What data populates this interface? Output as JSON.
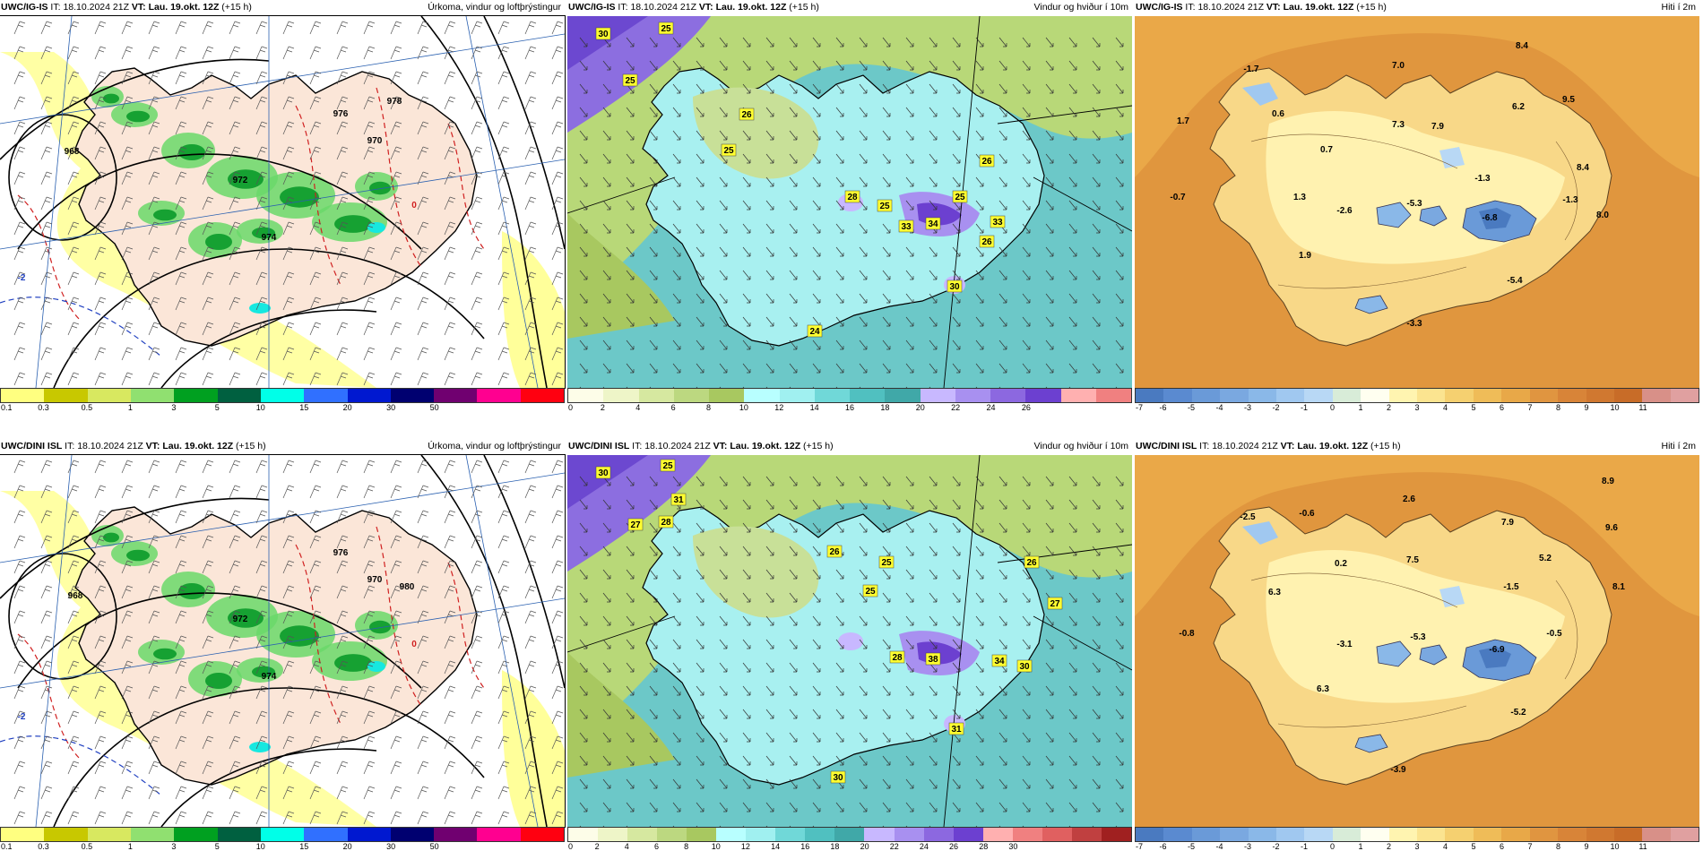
{
  "panels": [
    {
      "header_model": "UWC/IG-IS",
      "header_it_label": "IT:",
      "header_it": "18.10.2024 21Z",
      "header_vt_label": "VT:",
      "header_vt": "Lau. 19.okt. 12Z",
      "header_lead": "(+15 h)",
      "header_title": "Úrkoma, vindur og loftþrýstingur",
      "kind": "precip",
      "map_labels": [
        {
          "text": "970",
          "kind": "iso"
        },
        {
          "text": "972",
          "kind": "iso"
        },
        {
          "text": "974",
          "kind": "iso"
        },
        {
          "text": "976",
          "kind": "iso"
        },
        {
          "text": "978",
          "kind": "iso"
        },
        {
          "text": "968",
          "kind": "iso"
        },
        {
          "text": "-2",
          "kind": "temp"
        },
        {
          "text": "0",
          "kind": "temp"
        }
      ],
      "colorbar": {
        "colors": [
          "#ffff80",
          "#c8c800",
          "#d8e860",
          "#90e070",
          "#00a020",
          "#006040",
          "#00ffe8",
          "#3070ff",
          "#0018d0",
          "#000070",
          "#700070",
          "#ff0090",
          "#ff0010"
        ],
        "labels": [
          "0.1",
          "0.3",
          "0.5",
          "1",
          "3",
          "5",
          "10",
          "15",
          "20",
          "30",
          "50"
        ]
      }
    },
    {
      "header_model": "UWC/IG-IS",
      "header_it_label": "IT:",
      "header_it": "18.10.2024 21Z",
      "header_vt_label": "VT:",
      "header_vt": "Lau. 19.okt. 12Z",
      "header_lead": "(+15 h)",
      "header_title": "Vindur og hviður í 10m",
      "kind": "wind",
      "map_labels": [
        {
          "text": "30"
        },
        {
          "text": "25"
        },
        {
          "text": "25"
        },
        {
          "text": "26"
        },
        {
          "text": "25"
        },
        {
          "text": "26"
        },
        {
          "text": "25"
        },
        {
          "text": "28"
        },
        {
          "text": "25"
        },
        {
          "text": "33"
        },
        {
          "text": "34"
        },
        {
          "text": "33"
        },
        {
          "text": "26"
        },
        {
          "text": "30"
        },
        {
          "text": "24"
        }
      ],
      "colorbar": {
        "colors": [
          "#fdfde8",
          "#eef5c8",
          "#d6e8a0",
          "#bcd880",
          "#a8c860",
          "#b8ffff",
          "#a0f0f0",
          "#70d8d8",
          "#50c0c0",
          "#40a8a8",
          "#c8b8ff",
          "#a890f0",
          "#8c68e0",
          "#6c40d0",
          "#ffb0b0",
          "#f08080"
        ],
        "labels": [
          "0",
          "2",
          "4",
          "6",
          "8",
          "10",
          "12",
          "14",
          "16",
          "18",
          "20",
          "22",
          "24",
          "26"
        ]
      }
    },
    {
      "header_model": "UWC/IG-IS",
      "header_it_label": "IT:",
      "header_it": "18.10.2024 21Z",
      "header_vt_label": "VT:",
      "header_vt": "Lau. 19.okt. 12Z",
      "header_lead": "(+15 h)",
      "header_title": "Hiti í 2m",
      "kind": "temp",
      "map_labels": [
        {
          "text": "-1.7"
        },
        {
          "text": "1.7"
        },
        {
          "text": "0.6"
        },
        {
          "text": "7.0"
        },
        {
          "text": "8.4"
        },
        {
          "text": "7.3"
        },
        {
          "text": "7.9"
        },
        {
          "text": "6.2"
        },
        {
          "text": "9.5"
        },
        {
          "text": "0.7"
        },
        {
          "text": "-1.3"
        },
        {
          "text": "8.4"
        },
        {
          "text": "-0.7"
        },
        {
          "text": "1.3"
        },
        {
          "text": "-2.6"
        },
        {
          "text": "-5.3"
        },
        {
          "text": "-1.3"
        },
        {
          "text": "-6.8"
        },
        {
          "text": "8.0"
        },
        {
          "text": "1.9"
        },
        {
          "text": "-5.4"
        },
        {
          "text": "-3.3"
        }
      ],
      "colorbar": {
        "colors": [
          "#4a7ac0",
          "#5a8ad0",
          "#6a9ad8",
          "#7aa8e0",
          "#8ab8e8",
          "#a0c8f0",
          "#b8d8f5",
          "#d8ecd8",
          "#fffff0",
          "#fff4b0",
          "#fbe490",
          "#f5d070",
          "#efbc58",
          "#e8a848",
          "#e09540",
          "#d88438",
          "#d07830",
          "#c86c28",
          "#d89088",
          "#e0a0a0"
        ],
        "labels": [
          "-7",
          "-6",
          "-5",
          "-4",
          "-3",
          "-2",
          "-1",
          "0",
          "1",
          "2",
          "3",
          "4",
          "5",
          "6",
          "7",
          "8",
          "9",
          "10",
          "11"
        ]
      }
    },
    {
      "header_model": "UWC/DINI ISL",
      "header_it_label": "IT:",
      "header_it": "18.10.2024 21Z",
      "header_vt_label": "VT:",
      "header_vt": "Lau. 19.okt. 12Z",
      "header_lead": "(+15 h)",
      "header_title": "Úrkoma, vindur og loftþrýstingur",
      "kind": "precip",
      "map_labels": [
        {
          "text": "970",
          "kind": "iso"
        },
        {
          "text": "972",
          "kind": "iso"
        },
        {
          "text": "974",
          "kind": "iso"
        },
        {
          "text": "976",
          "kind": "iso"
        },
        {
          "text": "980",
          "kind": "iso"
        },
        {
          "text": "968",
          "kind": "iso"
        },
        {
          "text": "-2",
          "kind": "temp"
        },
        {
          "text": "0",
          "kind": "temp"
        }
      ],
      "colorbar": {
        "colors": [
          "#ffff80",
          "#c8c800",
          "#d8e860",
          "#90e070",
          "#00a020",
          "#006040",
          "#00ffe8",
          "#3070ff",
          "#0018d0",
          "#000070",
          "#700070",
          "#ff0090",
          "#ff0010"
        ],
        "labels": [
          "0.1",
          "0.3",
          "0.5",
          "1",
          "3",
          "5",
          "10",
          "15",
          "20",
          "30",
          "50"
        ]
      }
    },
    {
      "header_model": "UWC/DINI ISL",
      "header_it_label": "IT:",
      "header_it": "18.10.2024 21Z",
      "header_vt_label": "VT:",
      "header_vt": "Lau. 19.okt. 12Z",
      "header_lead": "(+15 h)",
      "header_title": "Vindur og hviður í 10m",
      "kind": "wind",
      "map_labels": [
        {
          "text": "30"
        },
        {
          "text": "25"
        },
        {
          "text": "31"
        },
        {
          "text": "27"
        },
        {
          "text": "28"
        },
        {
          "text": "26"
        },
        {
          "text": "25"
        },
        {
          "text": "25"
        },
        {
          "text": "26"
        },
        {
          "text": "27"
        },
        {
          "text": "28"
        },
        {
          "text": "38"
        },
        {
          "text": "34"
        },
        {
          "text": "30"
        },
        {
          "text": "31"
        },
        {
          "text": "30"
        }
      ],
      "colorbar": {
        "colors": [
          "#fdfde8",
          "#eef5c8",
          "#d6e8a0",
          "#bcd880",
          "#a8c860",
          "#b8ffff",
          "#a0f0f0",
          "#70d8d8",
          "#50c0c0",
          "#40a8a8",
          "#c8b8ff",
          "#a890f0",
          "#8c68e0",
          "#6c40d0",
          "#ffb0b0",
          "#f08080",
          "#e06060",
          "#c04040",
          "#a02020"
        ],
        "labels": [
          "0",
          "2",
          "4",
          "6",
          "8",
          "10",
          "12",
          "14",
          "16",
          "18",
          "20",
          "22",
          "24",
          "26",
          "28",
          "30"
        ]
      }
    },
    {
      "header_model": "UWC/DINI ISL",
      "header_it_label": "IT:",
      "header_it": "18.10.2024 21Z",
      "header_vt_label": "VT:",
      "header_vt": "Lau. 19.okt. 12Z",
      "header_lead": "(+15 h)",
      "header_title": "Hiti í 2m",
      "kind": "temp",
      "map_labels": [
        {
          "text": "8.9"
        },
        {
          "text": "-2.5"
        },
        {
          "text": "-0.6"
        },
        {
          "text": "2.6"
        },
        {
          "text": "7.9"
        },
        {
          "text": "9.6"
        },
        {
          "text": "7.5"
        },
        {
          "text": "0.2"
        },
        {
          "text": "5.2"
        },
        {
          "text": "6.3"
        },
        {
          "text": "-1.5"
        },
        {
          "text": "8.1"
        },
        {
          "text": "-0.8"
        },
        {
          "text": "-3.1"
        },
        {
          "text": "-5.3"
        },
        {
          "text": "-6.9"
        },
        {
          "text": "-0.5"
        },
        {
          "text": "6.3"
        },
        {
          "text": "-5.2"
        },
        {
          "text": "-3.9"
        }
      ],
      "colorbar": {
        "colors": [
          "#4a7ac0",
          "#5a8ad0",
          "#6a9ad8",
          "#7aa8e0",
          "#8ab8e8",
          "#a0c8f0",
          "#b8d8f5",
          "#d8ecd8",
          "#fffff0",
          "#fff4b0",
          "#fbe490",
          "#f5d070",
          "#efbc58",
          "#e8a848",
          "#e09540",
          "#d88438",
          "#d07830",
          "#c86c28",
          "#d89088",
          "#e0a0a0"
        ],
        "labels": [
          "-7",
          "-6",
          "-5",
          "-4",
          "-3",
          "-2",
          "-1",
          "0",
          "1",
          "2",
          "3",
          "4",
          "5",
          "6",
          "7",
          "8",
          "9",
          "10",
          "11"
        ]
      }
    }
  ]
}
